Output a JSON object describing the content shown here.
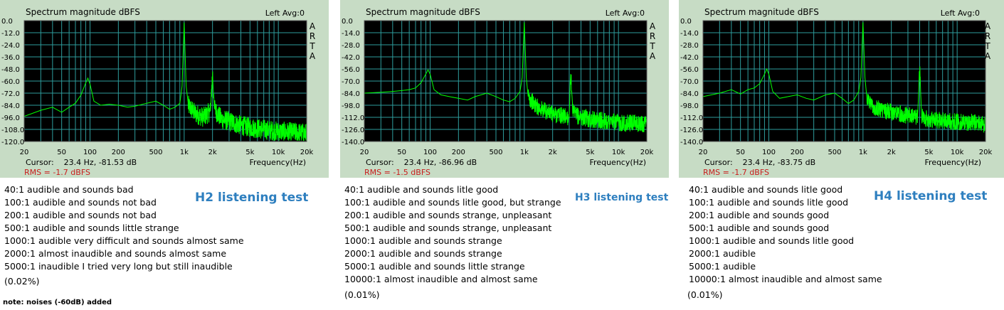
{
  "chart_data": [
    {
      "type": "line",
      "title": "Spectrum magnitude dBFS",
      "channel_label": "Left  Avg:0",
      "side_label": [
        "A",
        "R",
        "T",
        "A"
      ],
      "xlabel": "Frequency(Hz)",
      "x_scale": "log",
      "xlim": [
        20,
        20000
      ],
      "x_ticks": [
        20,
        50,
        100,
        200,
        500,
        1000,
        2000,
        5000,
        10000,
        20000
      ],
      "x_tick_labels": [
        "20",
        "50",
        "100",
        "200",
        "500",
        "1k",
        "2k",
        "5k",
        "10k",
        "20k"
      ],
      "ylim": [
        -120,
        0
      ],
      "y_tick_labels": [
        "0.0",
        "-12.0",
        "-24.0",
        "-36.0",
        "-48.0",
        "-60.0",
        "-72.0",
        "-84.0",
        "-96.0",
        "-108.0",
        "-120.0"
      ],
      "grid": true,
      "line_color": "#00ff00",
      "cursor_label": "Cursor:",
      "cursor_value": "23.4 Hz, -81.53 dB",
      "rms_text": "RMS =   -1.7 dBFS",
      "series": [
        {
          "x": [
            20,
            30,
            40,
            50,
            60,
            70,
            80,
            90,
            95,
            100,
            110,
            130,
            160,
            200,
            250,
            300,
            400,
            500,
            600,
            700,
            800,
            900,
            950,
            1000,
            1050,
            1100,
            1300,
            1600,
            1900,
            2000,
            2100,
            2500,
            3000,
            4000,
            5000,
            7000,
            10000,
            15000,
            20000
          ],
          "y": [
            -95,
            -89,
            -86,
            -91,
            -86,
            -82,
            -74,
            -62,
            -57,
            -63,
            -80,
            -84,
            -83,
            -84,
            -86,
            -85,
            -82,
            -80,
            -84,
            -88,
            -86,
            -82,
            -65,
            -2,
            -65,
            -84,
            -92,
            -96,
            -90,
            -52,
            -88,
            -98,
            -100,
            -104,
            -106,
            -108,
            -110,
            -111,
            -112
          ]
        }
      ],
      "noise": {
        "from": 1100,
        "amp": 10
      }
    },
    {
      "type": "line",
      "title": "Spectrum magnitude dBFS",
      "channel_label": "Left  Avg:0",
      "side_label": [
        "A",
        "R",
        "T",
        "A"
      ],
      "xlabel": "Frequency(Hz)",
      "x_scale": "log",
      "xlim": [
        20,
        20000
      ],
      "x_ticks": [
        20,
        50,
        100,
        200,
        500,
        1000,
        2000,
        5000,
        10000,
        20000
      ],
      "x_tick_labels": [
        "20",
        "50",
        "100",
        "200",
        "500",
        "1k",
        "2k",
        "5k",
        "10k",
        "20k"
      ],
      "ylim": [
        -140,
        0
      ],
      "y_tick_labels": [
        "0.0",
        "-14.0",
        "-28.0",
        "-42.0",
        "-56.0",
        "-70.0",
        "-84.0",
        "-98.0",
        "-112.0",
        "-126.0",
        "-140.0"
      ],
      "grid": true,
      "line_color": "#00ff00",
      "cursor_label": "Cursor:",
      "cursor_value": "23.4 Hz, -86.96 dB",
      "rms_text": "RMS =   -1.5 dBFS",
      "series": [
        {
          "x": [
            20,
            30,
            40,
            50,
            60,
            70,
            80,
            90,
            95,
            100,
            110,
            130,
            160,
            200,
            250,
            300,
            400,
            500,
            600,
            700,
            800,
            900,
            950,
            1000,
            1050,
            1100,
            1300,
            1600,
            2000,
            2500,
            3000,
            3100,
            3300,
            4000,
            5000,
            7000,
            10000,
            15000,
            20000
          ],
          "y": [
            -84,
            -83,
            -82,
            -81,
            -80,
            -78,
            -72,
            -62,
            -57,
            -62,
            -80,
            -86,
            -88,
            -90,
            -92,
            -88,
            -84,
            -88,
            -92,
            -94,
            -90,
            -82,
            -66,
            -2,
            -66,
            -88,
            -98,
            -104,
            -108,
            -110,
            -112,
            -60,
            -108,
            -112,
            -114,
            -116,
            -118,
            -119,
            -120
          ]
        }
      ],
      "noise": {
        "from": 1100,
        "amp": 10
      }
    },
    {
      "type": "line",
      "title": "Spectrum magnitude dBFS",
      "channel_label": "Left  Avg:0",
      "side_label": [
        "A",
        "R",
        "T",
        "A"
      ],
      "xlabel": "Frequency(Hz)",
      "x_scale": "log",
      "xlim": [
        20,
        20000
      ],
      "x_ticks": [
        20,
        50,
        100,
        200,
        500,
        1000,
        2000,
        5000,
        10000,
        20000
      ],
      "x_tick_labels": [
        "20",
        "50",
        "100",
        "200",
        "500",
        "1k",
        "2k",
        "5k",
        "10k",
        "20k"
      ],
      "ylim": [
        -140,
        0
      ],
      "y_tick_labels": [
        "0.0",
        "-14.0",
        "-28.0",
        "-42.0",
        "-56.0",
        "-70.0",
        "-84.0",
        "-98.0",
        "-112.0",
        "-126.0",
        "-140.0"
      ],
      "grid": true,
      "line_color": "#00ff00",
      "cursor_label": "Cursor:",
      "cursor_value": "23.4 Hz, -83.75 dB",
      "rms_text": "RMS =   -1.7 dBFS",
      "series": [
        {
          "x": [
            20,
            30,
            40,
            50,
            60,
            70,
            80,
            90,
            95,
            100,
            110,
            130,
            160,
            200,
            250,
            300,
            400,
            500,
            600,
            700,
            800,
            900,
            950,
            1000,
            1050,
            1100,
            1300,
            1600,
            2000,
            2500,
            3000,
            3800,
            4000,
            4200,
            5000,
            7000,
            10000,
            15000,
            20000
          ],
          "y": [
            -88,
            -84,
            -80,
            -85,
            -80,
            -78,
            -73,
            -62,
            -56,
            -62,
            -82,
            -90,
            -88,
            -86,
            -90,
            -92,
            -86,
            -84,
            -90,
            -96,
            -92,
            -82,
            -66,
            -2,
            -66,
            -90,
            -100,
            -104,
            -106,
            -108,
            -110,
            -112,
            -54,
            -112,
            -114,
            -116,
            -117,
            -118,
            -120
          ]
        }
      ],
      "noise": {
        "from": 1100,
        "amp": 10
      }
    }
  ],
  "tests": [
    {
      "heading": "H2 listening test",
      "lines": [
        "40:1 audible and sounds bad",
        "100:1 audible and sounds not bad",
        "200:1 audible and sounds not bad",
        "500:1 audible and sounds little strange",
        "1000:1 audible very difficult and sounds almost same",
        "2000:1 almost inaudible and sounds almost same",
        "5000:1 inaudible I tried very long but still inaudible"
      ],
      "percent": "(0.02%)"
    },
    {
      "heading": "H3 listening test",
      "lines": [
        "40:1 audible and sounds litle good",
        "100:1 audible and sounds litle good, but strange",
        "200:1 audible and sounds strange, unpleasant",
        "500:1 audible and sounds strange, unpleasant",
        "1000:1 audible and sounds strange",
        "2000:1 audible and sounds strange",
        "5000:1 audible and sounds little strange",
        "10000:1 almost inaudible and almost same"
      ],
      "percent": "(0.01%)"
    },
    {
      "heading": "H4 listening test",
      "lines": [
        "40:1 audible and sounds litle good",
        "100:1 audible and sounds litle good",
        "200:1 audible and sounds good",
        "500:1 audible and sounds good",
        "1000:1 audible and sounds litle good",
        "2000:1 audible",
        "5000:1 audible",
        "10000:1 almost inaudible and almost same"
      ],
      "percent": "(0.01%)"
    }
  ],
  "footnote": "note: noises (-60dB) added"
}
